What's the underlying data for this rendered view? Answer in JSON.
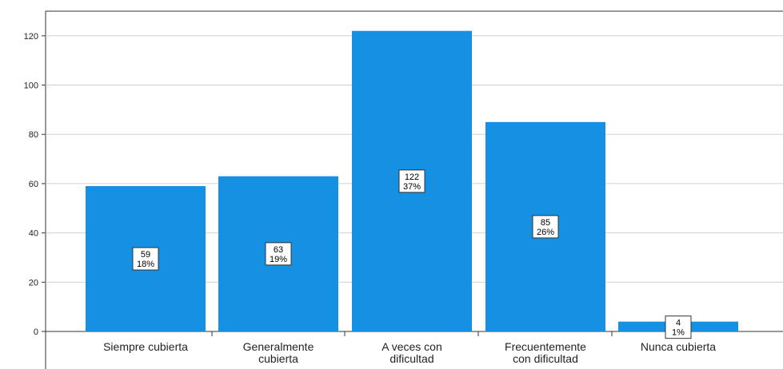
{
  "chart_data": {
    "type": "bar",
    "categories": [
      [
        "Siempre cubierta"
      ],
      [
        "Generalmente",
        "cubierta"
      ],
      [
        "A veces con",
        "dificultad"
      ],
      [
        "Frecuentemente",
        "con dificultad"
      ],
      [
        "Nunca cubierta"
      ]
    ],
    "values": [
      59,
      63,
      122,
      85,
      4
    ],
    "percents": [
      "18%",
      "19%",
      "37%",
      "26%",
      "1%"
    ],
    "value_labels": [
      "59",
      "63",
      "122",
      "85",
      "4"
    ],
    "ylim": [
      0,
      130
    ],
    "yticks": [
      0,
      20,
      40,
      60,
      80,
      100,
      120
    ],
    "grid": true,
    "bar_color": "#1690e3",
    "grid_color": "#d0d0d0",
    "axis_color": "#333333",
    "title": "",
    "xlabel": "",
    "ylabel": ""
  }
}
